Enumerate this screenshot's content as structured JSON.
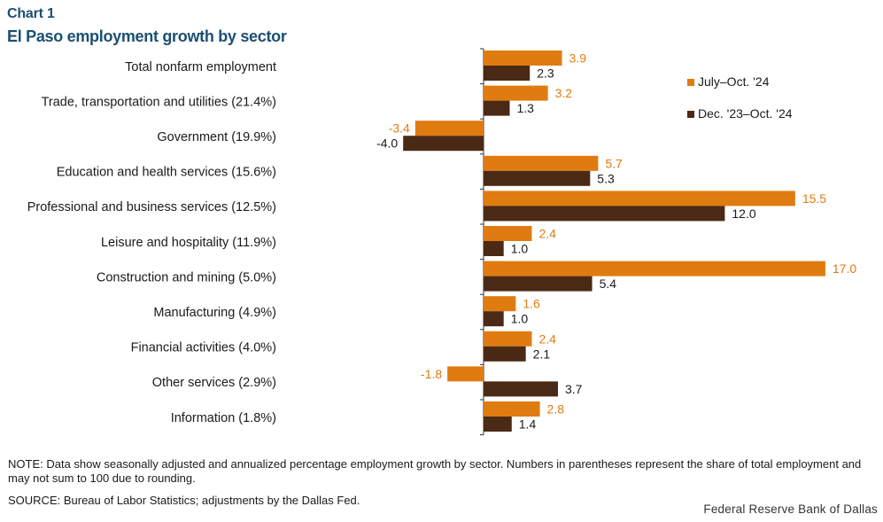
{
  "header": {
    "chart_label": "Chart 1",
    "title": "El Paso employment growth by sector"
  },
  "chart_data": {
    "type": "bar",
    "orientation": "horizontal",
    "title": "El Paso employment growth by sector",
    "xlabel": "",
    "ylabel": "",
    "xlim": [
      -5,
      18
    ],
    "categories": [
      "Total nonfarm employment",
      "Trade, transportation and utilities (21.4%)",
      "Government (19.9%)",
      "Education and health services (15.6%)",
      "Professional and business services (12.5%)",
      "Leisure and hospitality (11.9%)",
      "Construction and mining (5.0%)",
      "Manufacturing (4.9%)",
      "Financial activities (4.0%)",
      "Other services (2.9%)",
      "Information (1.8%)"
    ],
    "series": [
      {
        "name": "July–Oct.  '24",
        "color": "#E07B10",
        "label_color": "#E07B10",
        "values": [
          3.9,
          3.2,
          -3.4,
          5.7,
          15.5,
          2.4,
          17.0,
          1.6,
          2.4,
          -1.8,
          2.8
        ],
        "labels": [
          "3.9",
          "3.2",
          "-3.4",
          "5.7",
          "15.5",
          "2.4",
          "17.0",
          "1.6",
          "2.4",
          "-1.8",
          "2.8"
        ]
      },
      {
        "name": "Dec. '23–Oct. '24",
        "color": "#4A2A14",
        "label_color": "#1a1a1a",
        "values": [
          2.3,
          1.3,
          -4.0,
          5.3,
          12.0,
          1.0,
          5.4,
          1.0,
          2.1,
          3.7,
          1.4
        ],
        "labels": [
          "2.3",
          "1.3",
          "-4.0",
          "5.3",
          "12.0",
          "1.0",
          "5.4",
          "1.0",
          "2.1",
          "3.7",
          "1.4"
        ]
      }
    ],
    "legend_position": "top-right",
    "grid": false
  },
  "footer": {
    "note": "NOTE: Data show seasonally adjusted and annualized percentage employment growth by sector. Numbers in parentheses represent the share of total employment and may not sum to 100 due to rounding.",
    "source": "SOURCE: Bureau of Labor Statistics; adjustments by the Dallas Fed.",
    "credit": "Federal Reserve Bank of Dallas"
  }
}
